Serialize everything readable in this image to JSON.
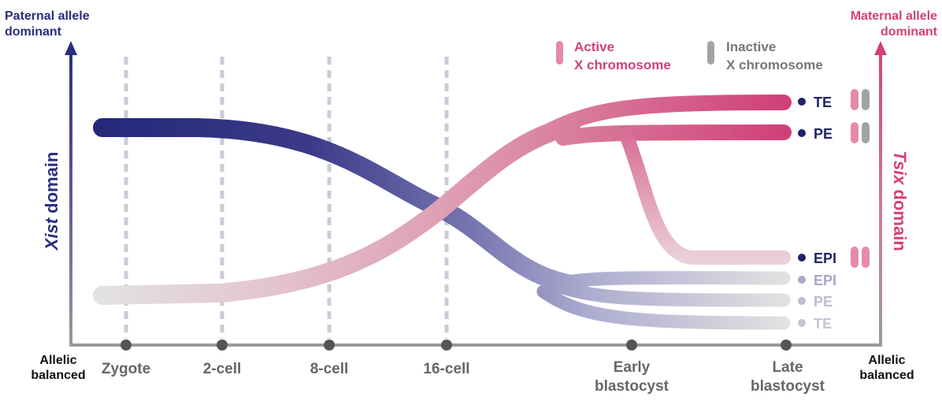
{
  "left_axis": {
    "top_line1": "Paternal allele",
    "top_line2": "dominant",
    "domain_italic": "Xist",
    "domain_rest": " domain",
    "bottom_line1": "Allelic",
    "bottom_line2": "balanced"
  },
  "right_axis": {
    "top_line1": "Maternal allele",
    "top_line2": "dominant",
    "domain_italic": "Tsix",
    "domain_rest": " domain",
    "bottom_line1": "Allelic",
    "bottom_line2": "balanced"
  },
  "legend": {
    "active_line1": "Active",
    "active_line2": "X chromosome",
    "inactive_line1": "Inactive",
    "inactive_line2": "X chromosome"
  },
  "stages": [
    {
      "line1": "Zygote",
      "line2": ""
    },
    {
      "line1": "2-cell",
      "line2": ""
    },
    {
      "line1": "8-cell",
      "line2": ""
    },
    {
      "line1": "16-cell",
      "line2": ""
    },
    {
      "line1": "Early",
      "line2": "blastocyst"
    },
    {
      "line1": "Late",
      "line2": "blastocyst"
    }
  ],
  "tsix_lineages": [
    "TE",
    "PE",
    "EPI"
  ],
  "xist_lineages": [
    "EPI",
    "PE",
    "TE"
  ],
  "colors": {
    "paternal": "#2b2d7e",
    "maternal": "#d43f7a",
    "neutral": "#dcdcdc",
    "active_x": "#e58aaa",
    "inactive_x": "#a3a3a3"
  }
}
